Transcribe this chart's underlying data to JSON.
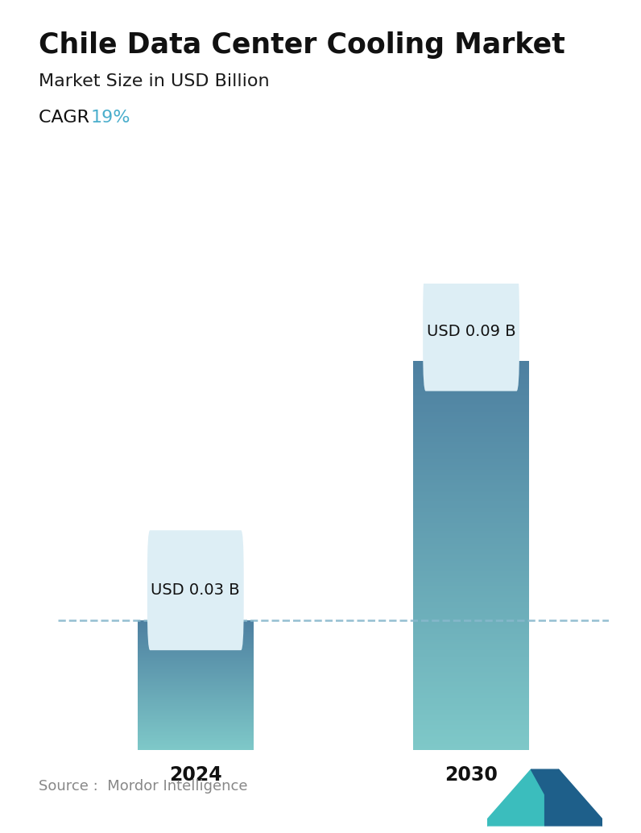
{
  "title": "Chile Data Center Cooling Market",
  "subtitle": "Market Size in USD Billion",
  "cagr_label": "CAGR",
  "cagr_value": "19%",
  "cagr_color": "#4aaecc",
  "categories": [
    "2024",
    "2030"
  ],
  "values": [
    0.03,
    0.09
  ],
  "bar_labels": [
    "USD 0.03 B",
    "USD 0.09 B"
  ],
  "bar_color_top": "#4d7fa0",
  "bar_color_bottom": "#7ec8c8",
  "dashed_line_color": "#88b8cc",
  "callout_bg": "#ddeef5",
  "source_text": "Source :  Mordor Intelligence",
  "background_color": "#ffffff",
  "ylim": [
    0,
    0.108
  ],
  "title_fontsize": 25,
  "subtitle_fontsize": 16,
  "cagr_fontsize": 16,
  "tick_fontsize": 17,
  "label_fontsize": 14,
  "source_fontsize": 13
}
